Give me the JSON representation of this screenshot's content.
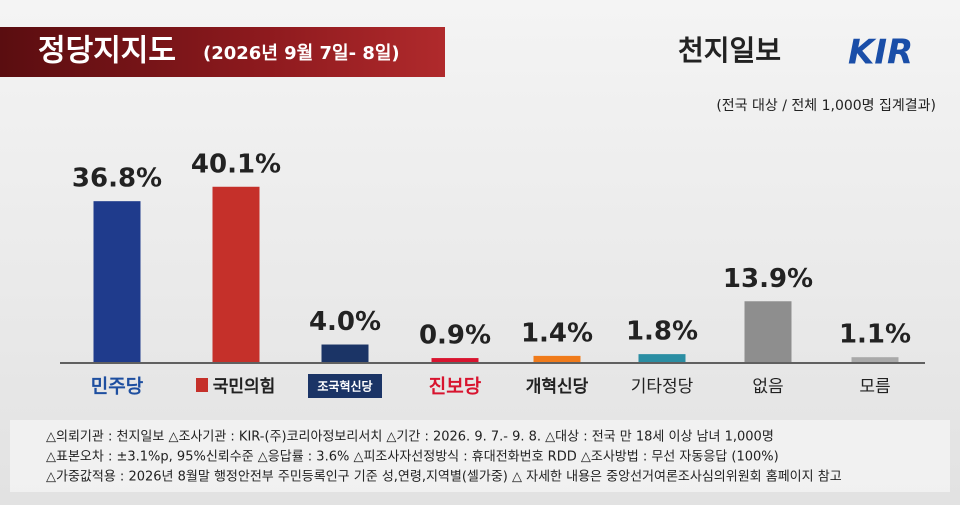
{
  "chart_data": {
    "type": "bar",
    "title": "정당지지도",
    "subtitle": "(2026년 9월 7일- 8일)",
    "publisher": "천지일보",
    "logo": "KIR",
    "note": "(전국 대상 / 전체 1,000명 집계결과)",
    "categories": [
      "민주당",
      "국민의힘",
      "조국혁신당",
      "진보당",
      "개혁신당",
      "기타정당",
      "없음",
      "모름"
    ],
    "values": [
      36.8,
      40.1,
      4.0,
      0.9,
      1.4,
      1.8,
      13.9,
      1.1
    ],
    "value_labels": [
      "36.8%",
      "40.1%",
      "4.0%",
      "0.9%",
      "1.4%",
      "1.8%",
      "13.9%",
      "1.1%"
    ],
    "colors": [
      "#1f3b8c",
      "#c5302a",
      "#1b3466",
      "#d8142f",
      "#f07b1b",
      "#2b8ea3",
      "#8e8e8e",
      "#a9a9a9"
    ],
    "footnotes": [
      "△의뢰기관 : 천지일보   △조사기관 : KIR-(주)코리아정보리서치   △기간 : 2026. 9. 7.- 9. 8.  △대상 : 전국 만 18세 이상 남녀 1,000명",
      "△표본오차 : ±3.1%p, 95%신뢰수준  △응답률 : 3.6%  △피조사자선정방식 : 휴대전화번호 RDD  △조사방법 : 무선 자동응답 (100%)",
      "△가중값적용 : 2026년 8월말 행정안전부 주민등록인구 기준 성,연령,지역별(셀가중)  △ 자세한 내용은 중앙선거여론조사심의위원회 홈페이지 참고"
    ]
  }
}
